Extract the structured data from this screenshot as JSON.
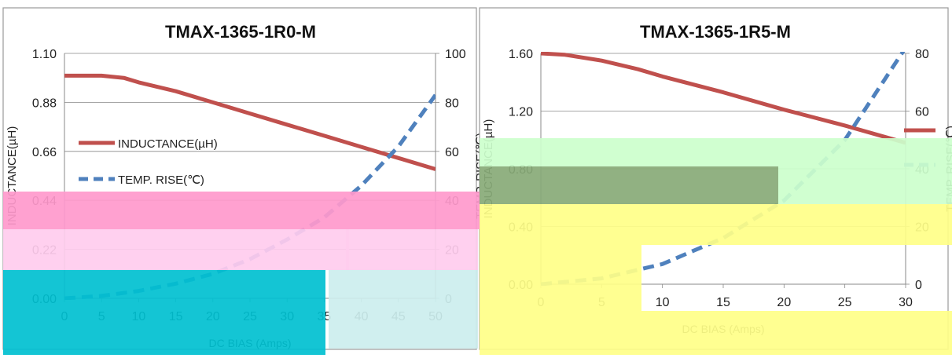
{
  "chart_data": [
    {
      "type": "line",
      "title": "TMAX-1365-1R0-M",
      "xlabel": "DC BIAS  (Amps)",
      "ylabel_left": "INDUCTANCE(µH)",
      "ylabel_right": "TEMP. RISE(℃)",
      "xlim": [
        0,
        50
      ],
      "ylim_left": [
        0.0,
        1.1
      ],
      "ylim_right": [
        0,
        100
      ],
      "x_ticks": [
        "0",
        "5",
        "10",
        "15",
        "20",
        "25",
        "30",
        "35",
        "40",
        "45",
        "50"
      ],
      "y_left_ticks": [
        "0.00",
        "0.22",
        "0.44",
        "0.66",
        "0.88",
        "1.10"
      ],
      "y_right_ticks": [
        "0",
        "20",
        "40",
        "60",
        "80",
        "100"
      ],
      "legend_position": "left",
      "series": [
        {
          "name": "INDUCTANCE(µH)",
          "axis": "left",
          "color": "#c0504d",
          "style": "solid",
          "x": [
            0,
            2,
            5,
            8,
            10,
            15,
            20,
            25,
            30,
            35,
            40,
            45,
            50
          ],
          "y": [
            1.0,
            1.0,
            1.0,
            0.99,
            0.97,
            0.93,
            0.88,
            0.83,
            0.78,
            0.73,
            0.68,
            0.63,
            0.58
          ]
        },
        {
          "name": "TEMP. RISE(℃)",
          "axis": "right",
          "color": "#4f81bd",
          "style": "dashed",
          "x": [
            0,
            5,
            10,
            15,
            20,
            25,
            30,
            35,
            40,
            45,
            50
          ],
          "y": [
            0,
            1,
            3,
            6,
            10,
            16,
            24,
            33,
            46,
            62,
            83
          ]
        }
      ]
    },
    {
      "type": "line",
      "title": "TMAX-1365-1R5-M",
      "xlabel": "DC BIAS  (Amps)",
      "ylabel_left": "INDUCTANCE(µH)",
      "ylabel_right": "TEMP. RISE(℃)",
      "xlim": [
        0,
        30
      ],
      "ylim_left": [
        0.0,
        1.6
      ],
      "ylim_right": [
        0,
        80
      ],
      "x_ticks": [
        "0",
        "5",
        "10",
        "15",
        "20",
        "25",
        "30"
      ],
      "y_left_ticks": [
        "0.00",
        "0.40",
        "0.80",
        "1.20",
        "1.60"
      ],
      "y_right_ticks": [
        "0",
        "20",
        "40",
        "60",
        "80"
      ],
      "legend_position": "right",
      "series": [
        {
          "name": "INDUCTANCE(µH)",
          "axis": "left",
          "color": "#c0504d",
          "style": "solid",
          "x": [
            0,
            2,
            5,
            8,
            10,
            15,
            20,
            25,
            30
          ],
          "y": [
            1.6,
            1.59,
            1.55,
            1.49,
            1.44,
            1.33,
            1.21,
            1.1,
            0.98
          ]
        },
        {
          "name": "TEMP. RISE(℃)",
          "axis": "right",
          "color": "#4f81bd",
          "style": "dashed",
          "x": [
            0,
            5,
            10,
            15,
            20,
            25,
            30
          ],
          "y": [
            0,
            2,
            7,
            16,
            29,
            50,
            82
          ]
        }
      ]
    }
  ],
  "overlay_colors": {
    "pink": "#ff99cc",
    "pink_light": "#ffccee",
    "cyan": "#00c0d0",
    "yellow": "#ffff88",
    "green_light": "#ccffcc",
    "green_dark": "#88aa77",
    "lavender": "#cceeee"
  }
}
